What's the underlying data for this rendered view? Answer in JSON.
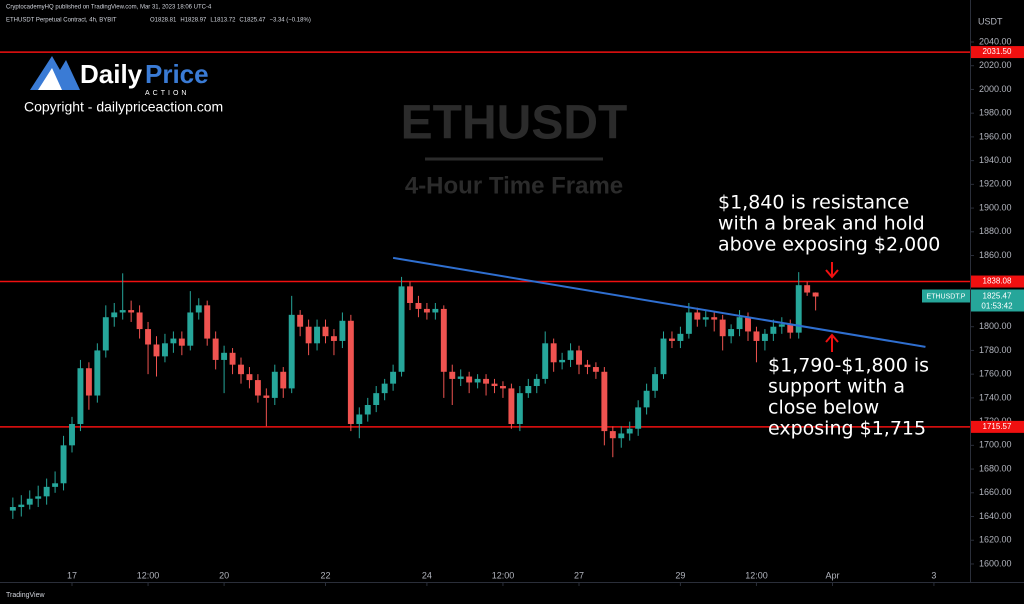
{
  "chart_data": {
    "type": "candlestick",
    "published": "CryptocademyHQ published on TradingView.com, Mar 31, 2023 18:06 UTC-4",
    "symbol": "ETHUSDT Perpetual Contract, 4h, BYBIT",
    "legend": [
      "O1828.81",
      "H1828.97",
      "L1813.72",
      "C1825.47",
      "−3.34 (−0.18%)"
    ],
    "currency": "USDT",
    "watermark_title": "ETHUSDT",
    "watermark_subtitle": "4-Hour Time Frame",
    "logo": {
      "word1": "Daily",
      "word2": "Price",
      "tag": "ACTION"
    },
    "copyright": "Copyright - dailypriceaction.com",
    "footer": "TradingView",
    "up_color": "#26a69a",
    "down_color": "#ef5350",
    "ylim": [
      1584.8,
      2075.4
    ],
    "xlim": [
      -1.52,
      113.27
    ],
    "yticks": [
      {
        "value": 1600,
        "label": "1600.00"
      },
      {
        "value": 1620,
        "label": "1620.00"
      },
      {
        "value": 1640,
        "label": "1640.00"
      },
      {
        "value": 1660,
        "label": "1660.00"
      },
      {
        "value": 1680,
        "label": "1680.00"
      },
      {
        "value": 1700,
        "label": "1700.00"
      },
      {
        "value": 1720,
        "label": "1720.00"
      },
      {
        "value": 1740,
        "label": "1740.00"
      },
      {
        "value": 1760,
        "label": "1760.00"
      },
      {
        "value": 1780,
        "label": "1780.00"
      },
      {
        "value": 1800,
        "label": "1800.00"
      },
      {
        "value": 1860,
        "label": "1860.00"
      },
      {
        "value": 1880,
        "label": "1880.00"
      },
      {
        "value": 1900,
        "label": "1900.00"
      },
      {
        "value": 1920,
        "label": "1920.00"
      },
      {
        "value": 1940,
        "label": "1940.00"
      },
      {
        "value": 1960,
        "label": "1960.00"
      },
      {
        "value": 1980,
        "label": "1980.00"
      },
      {
        "value": 2000,
        "label": "2000.00"
      },
      {
        "value": 2020,
        "label": "2020.00"
      },
      {
        "value": 2040,
        "label": "2040.00"
      }
    ],
    "xticks": [
      {
        "value": 7,
        "label": "17"
      },
      {
        "value": 16,
        "label": "12:00"
      },
      {
        "value": 25,
        "label": "20"
      },
      {
        "value": 37,
        "label": "22"
      },
      {
        "value": 49,
        "label": "24"
      },
      {
        "value": 58,
        "label": "12:00"
      },
      {
        "value": 67,
        "label": "27"
      },
      {
        "value": 79,
        "label": "29"
      },
      {
        "value": 88,
        "label": "12:00"
      },
      {
        "value": 97,
        "label": "Apr"
      },
      {
        "value": 109,
        "label": "3"
      }
    ],
    "levels": [
      {
        "value": 2031.5,
        "label": "2031.50",
        "color": "#f01010"
      },
      {
        "value": 1838.08,
        "label": "1838.08",
        "color": "#f01010"
      },
      {
        "value": 1715.57,
        "label": "1715.57",
        "color": "#f01010"
      }
    ],
    "trendline": {
      "x": [
        45,
        108
      ],
      "y": [
        1858,
        1783
      ],
      "color": "#2f6fd0"
    },
    "price_tag": {
      "name": "ETHUSDT.P",
      "countdown": "01:53:42",
      "color": "#26a69a"
    },
    "annotations": [
      {
        "lines": [
          "$1,840 is resistance",
          "with a break and hold",
          "above exposing $2,000"
        ]
      },
      {
        "lines": [
          "$1,790-$1,800 is",
          "support with a",
          "close below",
          "exposing $1,715"
        ]
      }
    ],
    "ohlc": [
      [
        1645,
        1656,
        1638,
        1648
      ],
      [
        1648,
        1658,
        1640,
        1650
      ],
      [
        1650,
        1662,
        1646,
        1655
      ],
      [
        1655,
        1666,
        1648,
        1657
      ],
      [
        1657,
        1672,
        1650,
        1665
      ],
      [
        1665,
        1678,
        1660,
        1668
      ],
      [
        1668,
        1708,
        1662,
        1700
      ],
      [
        1700,
        1724,
        1694,
        1718
      ],
      [
        1718,
        1772,
        1712,
        1765
      ],
      [
        1765,
        1770,
        1730,
        1742
      ],
      [
        1742,
        1786,
        1736,
        1780
      ],
      [
        1780,
        1818,
        1774,
        1808
      ],
      [
        1808,
        1820,
        1800,
        1812
      ],
      [
        1812,
        1845,
        1806,
        1814
      ],
      [
        1814,
        1822,
        1804,
        1812
      ],
      [
        1812,
        1818,
        1790,
        1798
      ],
      [
        1798,
        1804,
        1760,
        1785
      ],
      [
        1785,
        1792,
        1758,
        1775
      ],
      [
        1775,
        1794,
        1770,
        1786
      ],
      [
        1786,
        1796,
        1778,
        1790
      ],
      [
        1790,
        1796,
        1776,
        1784
      ],
      [
        1784,
        1830,
        1780,
        1812
      ],
      [
        1812,
        1824,
        1806,
        1818
      ],
      [
        1818,
        1822,
        1784,
        1790
      ],
      [
        1790,
        1796,
        1764,
        1772
      ],
      [
        1772,
        1784,
        1744,
        1778
      ],
      [
        1778,
        1782,
        1760,
        1768
      ],
      [
        1768,
        1774,
        1752,
        1760
      ],
      [
        1760,
        1766,
        1748,
        1755
      ],
      [
        1755,
        1760,
        1736,
        1742
      ],
      [
        1742,
        1748,
        1716,
        1740
      ],
      [
        1740,
        1768,
        1734,
        1762
      ],
      [
        1762,
        1766,
        1740,
        1748
      ],
      [
        1748,
        1826,
        1744,
        1810
      ],
      [
        1810,
        1814,
        1792,
        1800
      ],
      [
        1800,
        1806,
        1776,
        1786
      ],
      [
        1786,
        1806,
        1780,
        1800
      ],
      [
        1800,
        1806,
        1786,
        1792
      ],
      [
        1792,
        1798,
        1776,
        1788
      ],
      [
        1788,
        1812,
        1782,
        1805
      ],
      [
        1805,
        1810,
        1712,
        1718
      ],
      [
        1718,
        1732,
        1706,
        1726
      ],
      [
        1726,
        1740,
        1720,
        1734
      ],
      [
        1734,
        1750,
        1728,
        1744
      ],
      [
        1744,
        1756,
        1738,
        1752
      ],
      [
        1752,
        1768,
        1746,
        1762
      ],
      [
        1762,
        1842,
        1758,
        1834
      ],
      [
        1834,
        1838,
        1814,
        1820
      ],
      [
        1820,
        1826,
        1808,
        1815
      ],
      [
        1815,
        1820,
        1806,
        1812
      ],
      [
        1812,
        1820,
        1806,
        1815
      ],
      [
        1815,
        1818,
        1740,
        1762
      ],
      [
        1762,
        1768,
        1734,
        1756
      ],
      [
        1756,
        1764,
        1750,
        1758
      ],
      [
        1758,
        1762,
        1744,
        1753
      ],
      [
        1753,
        1760,
        1748,
        1756
      ],
      [
        1756,
        1760,
        1742,
        1752
      ],
      [
        1752,
        1756,
        1744,
        1750
      ],
      [
        1750,
        1754,
        1740,
        1748
      ],
      [
        1748,
        1752,
        1714,
        1718
      ],
      [
        1718,
        1750,
        1712,
        1744
      ],
      [
        1744,
        1756,
        1740,
        1750
      ],
      [
        1750,
        1760,
        1744,
        1756
      ],
      [
        1756,
        1796,
        1752,
        1786
      ],
      [
        1786,
        1790,
        1762,
        1770
      ],
      [
        1770,
        1778,
        1764,
        1772
      ],
      [
        1772,
        1786,
        1766,
        1780
      ],
      [
        1780,
        1784,
        1760,
        1768
      ],
      [
        1768,
        1772,
        1760,
        1766
      ],
      [
        1766,
        1770,
        1756,
        1762
      ],
      [
        1762,
        1766,
        1700,
        1712
      ],
      [
        1712,
        1716,
        1690,
        1706
      ],
      [
        1706,
        1716,
        1698,
        1710
      ],
      [
        1710,
        1720,
        1704,
        1714
      ],
      [
        1714,
        1738,
        1708,
        1732
      ],
      [
        1732,
        1752,
        1726,
        1746
      ],
      [
        1746,
        1766,
        1740,
        1760
      ],
      [
        1760,
        1796,
        1756,
        1790
      ],
      [
        1790,
        1796,
        1782,
        1788
      ],
      [
        1788,
        1800,
        1782,
        1794
      ],
      [
        1794,
        1820,
        1790,
        1812
      ],
      [
        1812,
        1816,
        1800,
        1806
      ],
      [
        1806,
        1814,
        1800,
        1808
      ],
      [
        1808,
        1812,
        1796,
        1806
      ],
      [
        1806,
        1810,
        1780,
        1792
      ],
      [
        1792,
        1802,
        1786,
        1798
      ],
      [
        1798,
        1814,
        1792,
        1808
      ],
      [
        1808,
        1812,
        1788,
        1796
      ],
      [
        1796,
        1800,
        1770,
        1788
      ],
      [
        1788,
        1798,
        1780,
        1794
      ],
      [
        1794,
        1806,
        1788,
        1800
      ],
      [
        1800,
        1808,
        1794,
        1802
      ],
      [
        1802,
        1806,
        1790,
        1795
      ],
      [
        1795,
        1846,
        1790,
        1835
      ],
      [
        1835,
        1838,
        1826,
        1828.81
      ],
      [
        1828.81,
        1828.97,
        1813.72,
        1825.47
      ]
    ]
  }
}
